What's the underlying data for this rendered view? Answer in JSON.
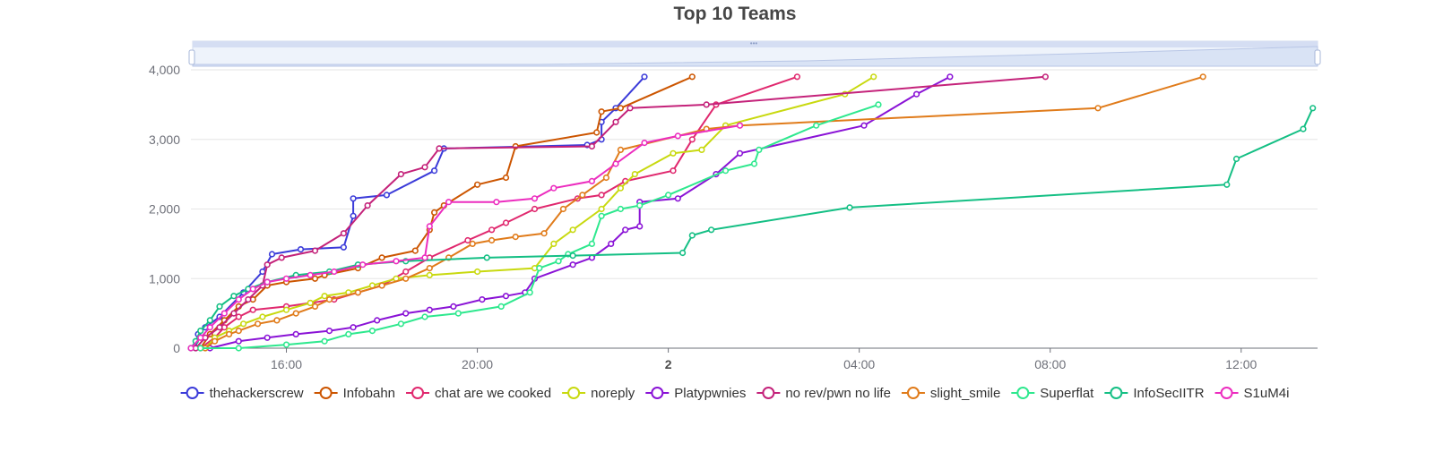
{
  "chart_data": {
    "type": "line",
    "title": "Top 10 Teams",
    "xlabel": "",
    "ylabel": "",
    "x_axis": {
      "ticks": [
        "16:00",
        "20:00",
        "2",
        "04:00",
        "08:00",
        "12:00"
      ],
      "tick_hours": [
        16,
        20,
        24,
        28,
        32,
        36
      ],
      "bold_ticks": [
        "2"
      ],
      "range_hours": [
        14.0,
        37.6
      ]
    },
    "y_axis": {
      "ticks": [
        "0",
        "1,000",
        "2,000",
        "3,000",
        "4,000"
      ],
      "tick_values": [
        0,
        1000,
        2000,
        3000,
        4000
      ],
      "range": [
        0,
        4000
      ]
    },
    "grid": true,
    "legend_position": "bottom",
    "data_zoom": {
      "visible": true,
      "range_percent": [
        0,
        100
      ]
    },
    "series": [
      {
        "name": "thehackerscrew",
        "color": "#3b3bd9",
        "points": [
          [
            14.1,
            0
          ],
          [
            14.15,
            200
          ],
          [
            14.3,
            300
          ],
          [
            14.6,
            450
          ],
          [
            15.1,
            800
          ],
          [
            15.5,
            1100
          ],
          [
            15.7,
            1350
          ],
          [
            16.3,
            1420
          ],
          [
            17.2,
            1450
          ],
          [
            17.4,
            1900
          ],
          [
            17.4,
            2150
          ],
          [
            18.1,
            2200
          ],
          [
            19.1,
            2550
          ],
          [
            19.3,
            2870
          ],
          [
            22.3,
            2920
          ],
          [
            22.6,
            3000
          ],
          [
            22.6,
            3250
          ],
          [
            22.9,
            3450
          ],
          [
            23.5,
            3900
          ]
        ]
      },
      {
        "name": "Infobahn",
        "color": "#cc5500",
        "points": [
          [
            14.2,
            0
          ],
          [
            14.4,
            200
          ],
          [
            14.7,
            400
          ],
          [
            15.0,
            600
          ],
          [
            15.3,
            700
          ],
          [
            15.6,
            900
          ],
          [
            16.0,
            950
          ],
          [
            16.6,
            1000
          ],
          [
            16.8,
            1050
          ],
          [
            17.5,
            1150
          ],
          [
            18.0,
            1300
          ],
          [
            18.7,
            1400
          ],
          [
            19.0,
            1700
          ],
          [
            19.1,
            1950
          ],
          [
            19.3,
            2050
          ],
          [
            20.0,
            2350
          ],
          [
            20.6,
            2450
          ],
          [
            20.8,
            2900
          ],
          [
            22.5,
            3100
          ],
          [
            22.6,
            3400
          ],
          [
            23.0,
            3450
          ],
          [
            24.5,
            3900
          ]
        ]
      },
      {
        "name": "chat are we cooked",
        "color": "#e0286e",
        "points": [
          [
            14.2,
            0
          ],
          [
            14.5,
            150
          ],
          [
            14.7,
            300
          ],
          [
            15.0,
            450
          ],
          [
            15.3,
            550
          ],
          [
            16.0,
            600
          ],
          [
            16.5,
            650
          ],
          [
            17.0,
            700
          ],
          [
            17.5,
            800
          ],
          [
            18.0,
            900
          ],
          [
            18.5,
            1100
          ],
          [
            19.0,
            1300
          ],
          [
            19.8,
            1550
          ],
          [
            20.3,
            1700
          ],
          [
            20.6,
            1800
          ],
          [
            21.2,
            2000
          ],
          [
            22.1,
            2150
          ],
          [
            22.6,
            2200
          ],
          [
            23.1,
            2400
          ],
          [
            24.1,
            2550
          ],
          [
            24.5,
            3000
          ],
          [
            25.0,
            3500
          ],
          [
            26.7,
            3900
          ]
        ]
      },
      {
        "name": "noreply",
        "color": "#c8d90f",
        "points": [
          [
            14.3,
            0
          ],
          [
            14.5,
            150
          ],
          [
            14.8,
            250
          ],
          [
            15.1,
            350
          ],
          [
            15.5,
            450
          ],
          [
            16.0,
            550
          ],
          [
            16.5,
            650
          ],
          [
            16.8,
            750
          ],
          [
            17.3,
            800
          ],
          [
            17.8,
            900
          ],
          [
            18.3,
            1000
          ],
          [
            19.0,
            1050
          ],
          [
            20.0,
            1100
          ],
          [
            21.2,
            1150
          ],
          [
            21.6,
            1500
          ],
          [
            22.0,
            1700
          ],
          [
            22.6,
            2000
          ],
          [
            23.0,
            2300
          ],
          [
            23.3,
            2500
          ],
          [
            24.1,
            2800
          ],
          [
            24.7,
            2850
          ],
          [
            25.2,
            3200
          ],
          [
            27.7,
            3650
          ],
          [
            28.3,
            3900
          ]
        ]
      },
      {
        "name": "Platypwnies",
        "color": "#8a13d6",
        "points": [
          [
            14.4,
            0
          ],
          [
            15.0,
            100
          ],
          [
            15.6,
            150
          ],
          [
            16.2,
            200
          ],
          [
            16.9,
            250
          ],
          [
            17.4,
            300
          ],
          [
            17.9,
            400
          ],
          [
            18.5,
            500
          ],
          [
            19.0,
            550
          ],
          [
            19.5,
            600
          ],
          [
            20.1,
            700
          ],
          [
            20.6,
            750
          ],
          [
            21.0,
            800
          ],
          [
            21.2,
            1000
          ],
          [
            22.0,
            1200
          ],
          [
            22.4,
            1300
          ],
          [
            22.8,
            1500
          ],
          [
            23.1,
            1700
          ],
          [
            23.4,
            1750
          ],
          [
            23.4,
            2100
          ],
          [
            24.2,
            2150
          ],
          [
            25.0,
            2500
          ],
          [
            25.5,
            2800
          ],
          [
            28.1,
            3200
          ],
          [
            29.2,
            3650
          ],
          [
            29.9,
            3900
          ]
        ]
      },
      {
        "name": "no rev/pwn no life",
        "color": "#c4227a",
        "points": [
          [
            14.1,
            0
          ],
          [
            14.3,
            150
          ],
          [
            14.6,
            300
          ],
          [
            14.9,
            500
          ],
          [
            15.2,
            700
          ],
          [
            15.5,
            900
          ],
          [
            15.6,
            1200
          ],
          [
            15.9,
            1300
          ],
          [
            16.6,
            1400
          ],
          [
            17.2,
            1650
          ],
          [
            17.7,
            2050
          ],
          [
            18.4,
            2500
          ],
          [
            18.9,
            2600
          ],
          [
            19.2,
            2870
          ],
          [
            22.4,
            2900
          ],
          [
            22.9,
            3250
          ],
          [
            23.2,
            3450
          ],
          [
            24.8,
            3500
          ],
          [
            31.9,
            3900
          ]
        ]
      },
      {
        "name": "slight_smile",
        "color": "#e07b1a",
        "points": [
          [
            14.3,
            0
          ],
          [
            14.5,
            100
          ],
          [
            14.8,
            200
          ],
          [
            15.0,
            250
          ],
          [
            15.4,
            350
          ],
          [
            15.8,
            400
          ],
          [
            16.2,
            500
          ],
          [
            16.6,
            600
          ],
          [
            16.9,
            700
          ],
          [
            17.5,
            800
          ],
          [
            18.0,
            900
          ],
          [
            18.5,
            1000
          ],
          [
            19.0,
            1150
          ],
          [
            19.4,
            1300
          ],
          [
            19.9,
            1500
          ],
          [
            20.3,
            1550
          ],
          [
            20.8,
            1600
          ],
          [
            21.4,
            1650
          ],
          [
            21.8,
            2000
          ],
          [
            22.2,
            2200
          ],
          [
            22.7,
            2450
          ],
          [
            23.0,
            2850
          ],
          [
            24.8,
            3150
          ],
          [
            25.5,
            3200
          ],
          [
            33.0,
            3450
          ],
          [
            35.2,
            3900
          ]
        ]
      },
      {
        "name": "Superflat",
        "color": "#2ee88e",
        "points": [
          [
            14.2,
            0
          ],
          [
            15.0,
            0
          ],
          [
            16.0,
            50
          ],
          [
            16.8,
            100
          ],
          [
            17.3,
            200
          ],
          [
            17.8,
            250
          ],
          [
            18.4,
            350
          ],
          [
            18.9,
            450
          ],
          [
            19.6,
            500
          ],
          [
            20.5,
            600
          ],
          [
            21.1,
            800
          ],
          [
            21.3,
            1150
          ],
          [
            21.7,
            1250
          ],
          [
            21.9,
            1350
          ],
          [
            22.4,
            1500
          ],
          [
            22.6,
            1900
          ],
          [
            23.0,
            2000
          ],
          [
            23.4,
            2050
          ],
          [
            24.0,
            2200
          ],
          [
            25.2,
            2550
          ],
          [
            25.8,
            2650
          ],
          [
            25.9,
            2850
          ],
          [
            27.1,
            3200
          ],
          [
            28.4,
            3500
          ]
        ]
      },
      {
        "name": "InfoSecIITR",
        "color": "#14bf84",
        "points": [
          [
            14.0,
            0
          ],
          [
            14.1,
            100
          ],
          [
            14.2,
            250
          ],
          [
            14.4,
            400
          ],
          [
            14.6,
            600
          ],
          [
            14.9,
            750
          ],
          [
            15.2,
            850
          ],
          [
            15.6,
            950
          ],
          [
            16.2,
            1050
          ],
          [
            16.9,
            1100
          ],
          [
            17.5,
            1200
          ],
          [
            18.5,
            1250
          ],
          [
            20.2,
            1300
          ],
          [
            22.0,
            1330
          ],
          [
            24.3,
            1370
          ],
          [
            24.5,
            1620
          ],
          [
            24.9,
            1700
          ],
          [
            27.8,
            2020
          ],
          [
            35.7,
            2350
          ],
          [
            35.9,
            2720
          ],
          [
            37.3,
            3150
          ],
          [
            37.5,
            3450
          ]
        ]
      },
      {
        "name": "S1uM4i",
        "color": "#ec2dbf",
        "points": [
          [
            14.0,
            0
          ],
          [
            14.2,
            150
          ],
          [
            14.4,
            300
          ],
          [
            14.7,
            500
          ],
          [
            15.0,
            700
          ],
          [
            15.3,
            850
          ],
          [
            15.6,
            950
          ],
          [
            16.0,
            1000
          ],
          [
            16.5,
            1050
          ],
          [
            17.0,
            1100
          ],
          [
            17.6,
            1200
          ],
          [
            18.3,
            1250
          ],
          [
            18.9,
            1300
          ],
          [
            19.0,
            1750
          ],
          [
            19.4,
            2100
          ],
          [
            20.4,
            2100
          ],
          [
            21.2,
            2150
          ],
          [
            21.6,
            2300
          ],
          [
            22.4,
            2400
          ],
          [
            22.9,
            2650
          ],
          [
            23.5,
            2950
          ],
          [
            24.2,
            3050
          ],
          [
            25.5,
            3200
          ]
        ]
      }
    ]
  }
}
